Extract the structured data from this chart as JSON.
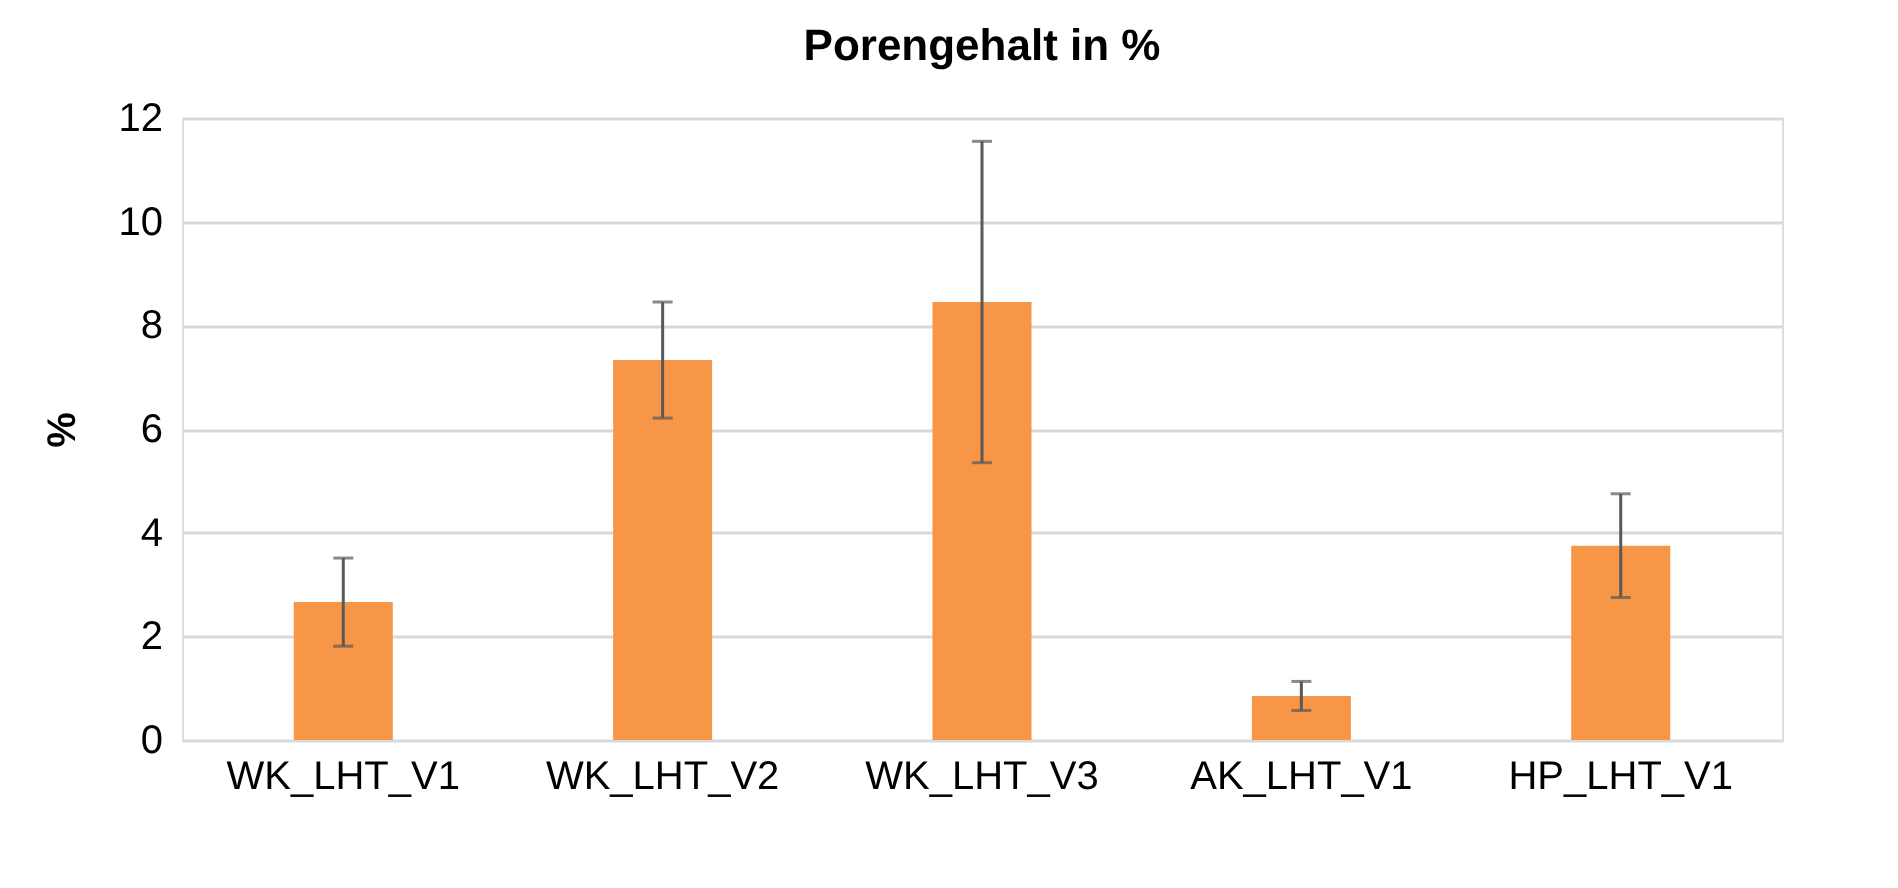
{
  "chart_data": {
    "type": "bar",
    "title": "Porengehalt in %",
    "ylabel": "%",
    "categories": [
      "WK_LHT_V1",
      "WK_LHT_V2",
      "WK_LHT_V3",
      "AK_LHT_V1",
      "HP_LHT_V1"
    ],
    "values": [
      2.66,
      7.33,
      8.45,
      0.85,
      3.75
    ],
    "errors": [
      0.85,
      1.12,
      3.1,
      0.28,
      1.0
    ],
    "color": "#f79646",
    "ylim": [
      0,
      12
    ],
    "yticks": [
      0,
      2,
      4,
      6,
      8,
      10,
      12
    ],
    "grid": "y"
  }
}
